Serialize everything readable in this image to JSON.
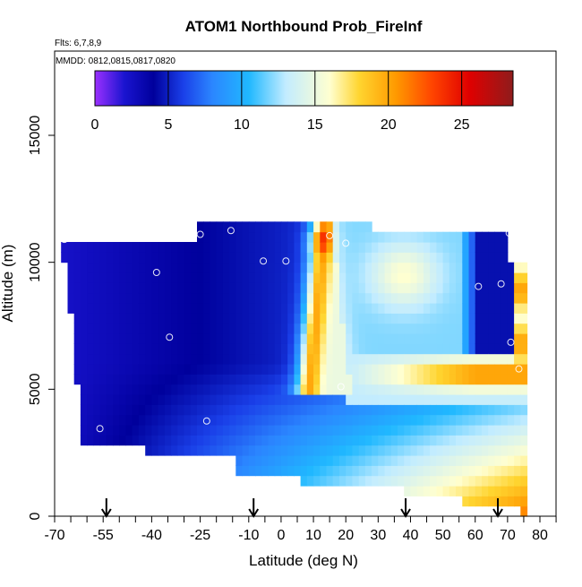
{
  "chart_data": {
    "type": "heatmap",
    "title": "ATOM1 Northbound Prob_FireInf",
    "subtitle_lines": [
      "Flts: 6,7,8,9",
      "MMDD: 0812,0815,0817,0820"
    ],
    "xlabel": "Latitude (deg N)",
    "ylabel": "Altitude (m)",
    "xlim": [
      -70,
      85
    ],
    "ylim": [
      0,
      18500
    ],
    "x_ticks": [
      {
        "value": -70,
        "label": "-70"
      },
      {
        "value": -55,
        "label": "-55"
      },
      {
        "value": -40,
        "label": "-40"
      },
      {
        "value": -25,
        "label": "-25"
      },
      {
        "value": -10,
        "label": "-10"
      },
      {
        "value": 0,
        "label": "0"
      },
      {
        "value": 10,
        "label": "10"
      },
      {
        "value": 20,
        "label": "20"
      },
      {
        "value": 30,
        "label": "30"
      },
      {
        "value": 40,
        "label": "40"
      },
      {
        "value": 50,
        "label": "50"
      },
      {
        "value": 60,
        "label": "60"
      },
      {
        "value": 70,
        "label": "70"
      },
      {
        "value": 80,
        "label": "80"
      }
    ],
    "y_ticks": [
      {
        "value": 0,
        "label": "0"
      },
      {
        "value": 5000,
        "label": "5000"
      },
      {
        "value": 10000,
        "label": "10000"
      },
      {
        "value": 15000,
        "label": "15000"
      }
    ],
    "colorbar": {
      "min": 0,
      "max": 28.5,
      "ticks": [
        {
          "value": 0,
          "label": "0"
        },
        {
          "value": 5,
          "label": "5"
        },
        {
          "value": 10,
          "label": "10"
        },
        {
          "value": 15,
          "label": "15"
        },
        {
          "value": 20,
          "label": "20"
        },
        {
          "value": 25,
          "label": "25"
        }
      ],
      "stops": [
        {
          "v": 0,
          "c": "#9b30ff"
        },
        {
          "v": 2,
          "c": "#1a14d0"
        },
        {
          "v": 4,
          "c": "#00009c"
        },
        {
          "v": 6,
          "c": "#1a3fe8"
        },
        {
          "v": 8,
          "c": "#2b86ff"
        },
        {
          "v": 10.5,
          "c": "#20b8ff"
        },
        {
          "v": 13,
          "c": "#c2ecff"
        },
        {
          "v": 16,
          "c": "#ffffd0"
        },
        {
          "v": 18,
          "c": "#ffd530"
        },
        {
          "v": 20.5,
          "c": "#ff9a00"
        },
        {
          "v": 23,
          "c": "#ff4400"
        },
        {
          "v": 25.5,
          "c": "#e00000"
        },
        {
          "v": 28.5,
          "c": "#8f1c1c"
        }
      ]
    },
    "grid": false,
    "arrows_x": [
      -54,
      -8.5,
      38.5,
      67
    ],
    "sample_points": [
      {
        "x": -67,
        "y": 10900
      },
      {
        "x": -25,
        "y": 11100
      },
      {
        "x": -15.5,
        "y": 11250
      },
      {
        "x": 15,
        "y": 11050
      },
      {
        "x": 20,
        "y": 10750
      },
      {
        "x": 70.5,
        "y": 11150
      },
      {
        "x": -38.5,
        "y": 9600
      },
      {
        "x": -5.5,
        "y": 10050
      },
      {
        "x": 1.5,
        "y": 10050
      },
      {
        "x": 61,
        "y": 9050
      },
      {
        "x": 68,
        "y": 9150
      },
      {
        "x": -34.5,
        "y": 7050
      },
      {
        "x": 71,
        "y": 6850
      },
      {
        "x": 73.5,
        "y": 5800
      },
      {
        "x": 18.5,
        "y": 5100
      },
      {
        "x": -23,
        "y": 3750
      },
      {
        "x": -56,
        "y": 3450
      }
    ]
  }
}
